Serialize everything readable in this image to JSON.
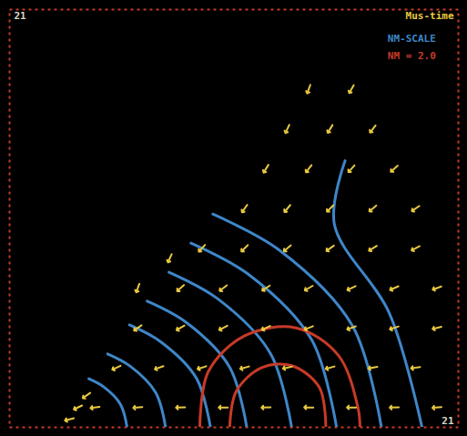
{
  "chart_data": {
    "type": "vector_field",
    "xlim": [
      0,
      21
    ],
    "ylim": [
      0,
      21
    ],
    "tick_labels": false,
    "grid": false,
    "annotations": [
      {
        "text": "21",
        "color": "#d8d8c8"
      },
      {
        "text": "21",
        "color": "#d8d8c8"
      },
      {
        "text": "Mus-time",
        "color": "#e8c840"
      },
      {
        "text": "NM-SCALE",
        "color": "#3f86c8"
      },
      {
        "text": "NM = 2.0",
        "color": "#c83a28"
      }
    ],
    "vectors": {
      "color": "#e8c840",
      "x": [
        2.8,
        3.2,
        3.6,
        4,
        6,
        8,
        10,
        12,
        14,
        16,
        18,
        20,
        5,
        7,
        9,
        11,
        13,
        15,
        17,
        19,
        6,
        8,
        10,
        12,
        14,
        16,
        18,
        20,
        8,
        10,
        12,
        14,
        16,
        18,
        20,
        9,
        11,
        13,
        15,
        17,
        19,
        11,
        13,
        15,
        17,
        19,
        12,
        14,
        16,
        18,
        13,
        15,
        17,
        14,
        16,
        6,
        7.5
      ],
      "y": [
        0.4,
        1.0,
        1.6,
        1,
        1,
        1,
        1,
        1,
        1,
        1,
        1,
        1,
        3,
        3,
        3,
        3,
        3,
        3,
        3,
        3,
        5,
        5,
        5,
        5,
        5,
        5,
        5,
        5,
        7,
        7,
        7,
        7,
        7,
        7,
        7,
        9,
        9,
        9,
        9,
        9,
        9,
        11,
        11,
        11,
        11,
        11,
        13,
        13,
        13,
        13,
        15,
        15,
        15,
        17,
        17,
        7,
        8.5
      ],
      "direction": [
        255,
        245,
        235,
        262,
        265,
        268,
        270,
        268,
        272,
        270,
        268,
        265,
        245,
        250,
        252,
        255,
        258,
        255,
        260,
        262,
        235,
        240,
        242,
        245,
        248,
        250,
        252,
        255,
        228,
        232,
        236,
        240,
        244,
        246,
        250,
        222,
        225,
        230,
        235,
        238,
        242,
        215,
        220,
        225,
        230,
        235,
        212,
        218,
        222,
        228,
        205,
        212,
        218,
        200,
        210,
        200,
        205
      ]
    },
    "series": [
      {
        "name": "NM-SCALE",
        "color": "#3f86c8",
        "lines": [
          {
            "x": [
              5.5,
              5.19,
              4.41,
              3.71
            ],
            "y": [
              0,
              1.16,
              2.03,
              2.44
            ]
          },
          {
            "x": [
              7.3,
              6.83,
              5.65,
              4.59
            ],
            "y": [
              0,
              1.76,
              3.07,
              3.69
            ]
          },
          {
            "x": [
              9.4,
              8.75,
              7.1,
              5.61
            ],
            "y": [
              0,
              2.46,
              4.28,
              5.15
            ]
          },
          {
            "x": [
              11.1,
              10.3,
              8.27,
              6.44
            ],
            "y": [
              0,
              3.02,
              5.27,
              6.34
            ]
          },
          {
            "x": [
              13.2,
              12.21,
              9.72,
              7.46
            ],
            "y": [
              0,
              3.71,
              6.48,
              7.8
            ]
          },
          {
            "x": [
              15.3,
              14.13,
              11.17,
              8.49
            ],
            "y": [
              0,
              4.41,
              7.7,
              9.26
            ]
          },
          {
            "x": [
              17.4,
              16.04,
              12.62,
              9.51
            ],
            "y": [
              0,
              5.11,
              8.91,
              10.72
            ]
          },
          {
            "x": [
              19.3,
              17.77,
              15.2,
              15.7
            ],
            "y": [
              0,
              5.74,
              10.2,
              13.4
            ]
          }
        ]
      },
      {
        "name": "NM = 2.0",
        "color": "#c83a28",
        "lines": [
          {
            "x": [
              8.9,
              9.3,
              11.0,
              13.4,
              15.4,
              16.3,
              16.4
            ],
            "y": [
              0,
              2.8,
              4.6,
              5.0,
              3.6,
              1.0,
              0
            ]
          },
          {
            "x": [
              10.3,
              10.6,
              11.8,
              13.2,
              14.5,
              14.8
            ],
            "y": [
              0,
              1.8,
              3.0,
              3.1,
              2.0,
              0
            ]
          }
        ]
      }
    ]
  }
}
